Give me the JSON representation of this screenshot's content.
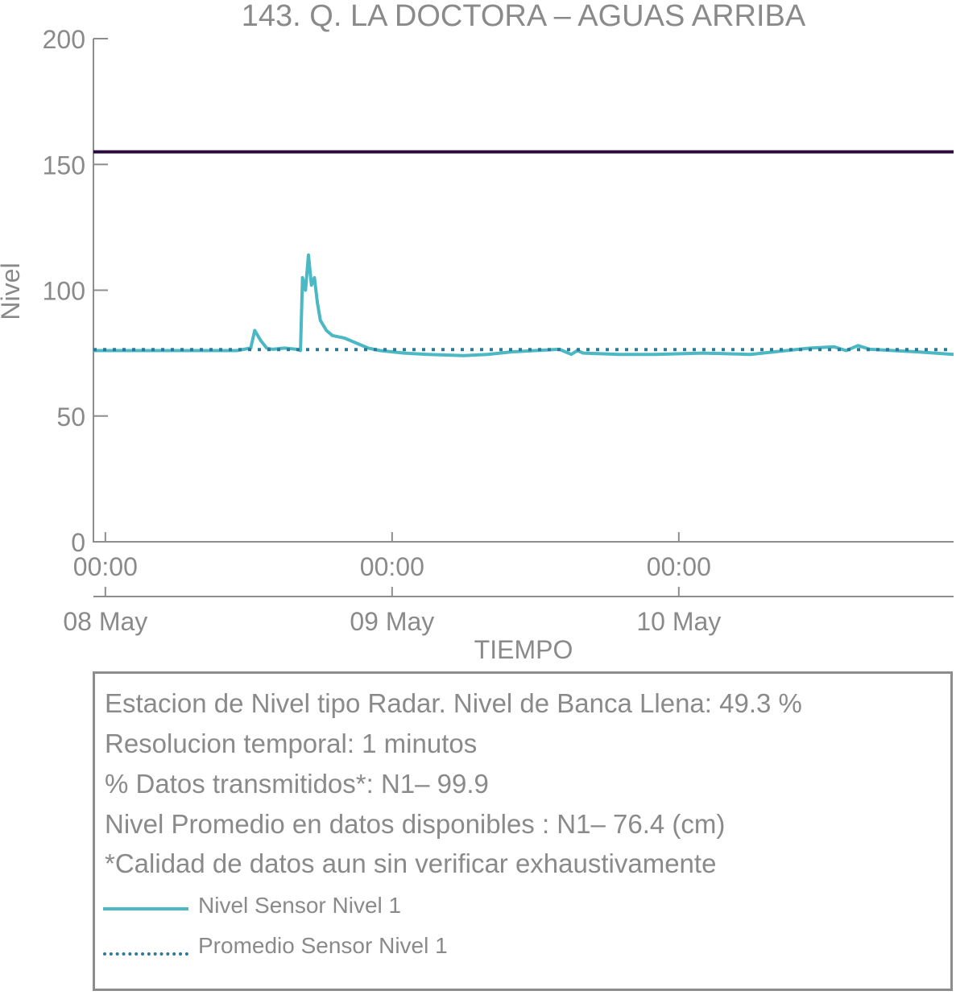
{
  "chart_data": {
    "type": "line",
    "title": "143. Q. LA DOCTORA – AGUAS ARRIBA",
    "xlabel": "TIEMPO",
    "ylabel": "Nivel",
    "ylim": [
      0,
      200
    ],
    "yticks": [
      "0",
      "50",
      "100",
      "150",
      "200"
    ],
    "xrange": [
      "2024-05-07T23:00",
      "2024-05-10T23:00"
    ],
    "xticks": [
      {
        "time": "2024-05-08T00:00",
        "label": "00:00",
        "date_label": "08 May"
      },
      {
        "time": "2024-05-09T00:00",
        "label": "00:00",
        "date_label": "09 May"
      },
      {
        "time": "2024-05-10T00:00",
        "label": "00:00",
        "date_label": "10 May"
      }
    ],
    "reference_line": {
      "value": 155,
      "color": "#2b0a3d"
    },
    "series": [
      {
        "name": "Nivel Sensor Nivel 1",
        "style": "solid",
        "color": "#4bb8c4",
        "points": [
          [
            "2024-05-07T23:00",
            76
          ],
          [
            "2024-05-08T02:00",
            76
          ],
          [
            "2024-05-08T05:00",
            76
          ],
          [
            "2024-05-08T08:00",
            76
          ],
          [
            "2024-05-08T11:00",
            76
          ],
          [
            "2024-05-08T12:10",
            77
          ],
          [
            "2024-05-08T12:30",
            84
          ],
          [
            "2024-05-08T13:00",
            80
          ],
          [
            "2024-05-08T13:30",
            77
          ],
          [
            "2024-05-08T14:00",
            76.5
          ],
          [
            "2024-05-08T15:00",
            77
          ],
          [
            "2024-05-08T16:00",
            76.5
          ],
          [
            "2024-05-08T16:20",
            76
          ],
          [
            "2024-05-08T16:30",
            105
          ],
          [
            "2024-05-08T16:45",
            100
          ],
          [
            "2024-05-08T17:00",
            114
          ],
          [
            "2024-05-08T17:15",
            102
          ],
          [
            "2024-05-08T17:30",
            105
          ],
          [
            "2024-05-08T17:45",
            95
          ],
          [
            "2024-05-08T18:00",
            88
          ],
          [
            "2024-05-08T18:30",
            84
          ],
          [
            "2024-05-08T19:00",
            82
          ],
          [
            "2024-05-08T20:00",
            81
          ],
          [
            "2024-05-08T21:00",
            79
          ],
          [
            "2024-05-08T22:00",
            77
          ],
          [
            "2024-05-08T23:00",
            76
          ],
          [
            "2024-05-09T01:00",
            75
          ],
          [
            "2024-05-09T03:00",
            74.5
          ],
          [
            "2024-05-09T06:00",
            74
          ],
          [
            "2024-05-09T08:00",
            74.5
          ],
          [
            "2024-05-09T10:00",
            75.5
          ],
          [
            "2024-05-09T12:00",
            76
          ],
          [
            "2024-05-09T14:00",
            76.5
          ],
          [
            "2024-05-09T15:00",
            74.5
          ],
          [
            "2024-05-09T15:30",
            76
          ],
          [
            "2024-05-09T16:00",
            75
          ],
          [
            "2024-05-09T19:00",
            74.5
          ],
          [
            "2024-05-09T22:00",
            74.5
          ],
          [
            "2024-05-10T02:00",
            75
          ],
          [
            "2024-05-10T06:00",
            74.5
          ],
          [
            "2024-05-10T09:00",
            76
          ],
          [
            "2024-05-10T11:00",
            77
          ],
          [
            "2024-05-10T13:00",
            77.5
          ],
          [
            "2024-05-10T14:00",
            76
          ],
          [
            "2024-05-10T15:00",
            78
          ],
          [
            "2024-05-10T16:00",
            76.5
          ],
          [
            "2024-05-10T18:00",
            76
          ],
          [
            "2024-05-10T20:00",
            75.5
          ],
          [
            "2024-05-10T23:00",
            74.5
          ]
        ]
      },
      {
        "name": "Promedio Sensor Nivel 1",
        "style": "dotted",
        "color": "#2a7a98",
        "points": [
          [
            "2024-05-07T23:00",
            76.4
          ],
          [
            "2024-05-10T23:00",
            76.4
          ]
        ]
      }
    ]
  },
  "info": {
    "lines": [
      "Estacion de Nivel tipo Radar. Nivel de Banca Llena: 49.3 %",
      "Resolucion temporal: 1 minutos",
      "% Datos transmitidos*: N1– 99.9",
      "Nivel Promedio en datos disponibles : N1– 76.4 (cm)",
      "*Calidad de datos aun sin verificar exhaustivamente"
    ]
  }
}
